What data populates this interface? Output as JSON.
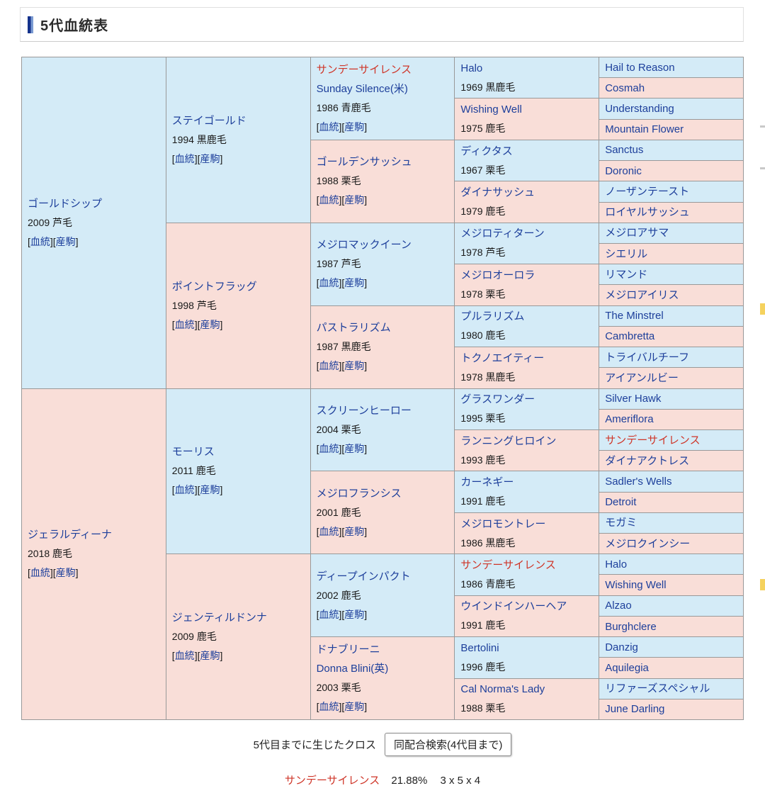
{
  "header": {
    "title": "5代血統表"
  },
  "colors": {
    "male_bg": "#d4ebf7",
    "female_bg": "#f9ded8",
    "link": "#1d3f9b",
    "cross": "#cf3528",
    "border": "#999999",
    "highlight_mark": "#f5d25e"
  },
  "table": {
    "cell_links": [
      "血統",
      "産駒"
    ]
  },
  "pedigree": {
    "generations": [
      {
        "span": 16,
        "has_links": true,
        "cells": [
          {
            "name": "ゴールドシップ",
            "detail": "2009 芦毛",
            "sex": "m"
          },
          {
            "name": "ジェラルディーナ",
            "detail": "2018 鹿毛",
            "sex": "f"
          }
        ]
      },
      {
        "span": 8,
        "has_links": true,
        "cells": [
          {
            "name": "ステイゴールド",
            "detail": "1994 黒鹿毛",
            "sex": "m"
          },
          {
            "name": "ポイントフラッグ",
            "detail": "1998 芦毛",
            "sex": "f"
          },
          {
            "name": "モーリス",
            "detail": "2011 鹿毛",
            "sex": "m"
          },
          {
            "name": "ジェンティルドンナ",
            "detail": "2009 鹿毛",
            "sex": "f"
          }
        ]
      },
      {
        "span": 4,
        "has_links": true,
        "cells": [
          {
            "name": "サンデーサイレンス",
            "name2": "Sunday Silence(米)",
            "detail": "1986 青鹿毛",
            "sex": "m",
            "cross": true
          },
          {
            "name": "ゴールデンサッシュ",
            "detail": "1988 栗毛",
            "sex": "f"
          },
          {
            "name": "メジロマックイーン",
            "detail": "1987 芦毛",
            "sex": "m"
          },
          {
            "name": "パストラリズム",
            "detail": "1987 黒鹿毛",
            "sex": "f"
          },
          {
            "name": "スクリーンヒーロー",
            "detail": "2004 栗毛",
            "sex": "m"
          },
          {
            "name": "メジロフランシス",
            "detail": "2001 鹿毛",
            "sex": "f"
          },
          {
            "name": "ディープインパクト",
            "detail": "2002 鹿毛",
            "sex": "m"
          },
          {
            "name": "ドナブリーニ",
            "name2": "Donna Blini(英)",
            "detail": "2003 栗毛",
            "sex": "f"
          }
        ]
      },
      {
        "span": 2,
        "has_links": false,
        "cells": [
          {
            "name": "Halo",
            "detail": "1969 黒鹿毛",
            "sex": "m"
          },
          {
            "name": "Wishing Well",
            "detail": "1975 鹿毛",
            "sex": "f"
          },
          {
            "name": "ディクタス",
            "detail": "1967 栗毛",
            "sex": "m"
          },
          {
            "name": "ダイナサッシュ",
            "detail": "1979 鹿毛",
            "sex": "f"
          },
          {
            "name": "メジロティターン",
            "detail": "1978 芦毛",
            "sex": "m"
          },
          {
            "name": "メジロオーロラ",
            "detail": "1978 栗毛",
            "sex": "f"
          },
          {
            "name": "プルラリズム",
            "detail": "1980 鹿毛",
            "sex": "m"
          },
          {
            "name": "トクノエイティー",
            "detail": "1978 黒鹿毛",
            "sex": "f"
          },
          {
            "name": "グラスワンダー",
            "detail": "1995 栗毛",
            "sex": "m"
          },
          {
            "name": "ランニングヒロイン",
            "detail": "1993 鹿毛",
            "sex": "f"
          },
          {
            "name": "カーネギー",
            "detail": "1991 鹿毛",
            "sex": "m"
          },
          {
            "name": "メジロモントレー",
            "detail": "1986 黒鹿毛",
            "sex": "f"
          },
          {
            "name": "サンデーサイレンス",
            "detail": "1986 青鹿毛",
            "sex": "m",
            "cross": true
          },
          {
            "name": "ウインドインハーヘア",
            "detail": "1991 鹿毛",
            "sex": "f"
          },
          {
            "name": "Bertolini",
            "detail": "1996 鹿毛",
            "sex": "m"
          },
          {
            "name": "Cal Norma's Lady",
            "detail": "1988 栗毛",
            "sex": "f"
          }
        ]
      },
      {
        "span": 1,
        "has_links": false,
        "cells": [
          {
            "name": "Hail to Reason",
            "sex": "m"
          },
          {
            "name": "Cosmah",
            "sex": "f"
          },
          {
            "name": "Understanding",
            "sex": "m"
          },
          {
            "name": "Mountain Flower",
            "sex": "f"
          },
          {
            "name": "Sanctus",
            "sex": "m"
          },
          {
            "name": "Doronic",
            "sex": "f"
          },
          {
            "name": "ノーザンテースト",
            "sex": "m"
          },
          {
            "name": "ロイヤルサッシュ",
            "sex": "f"
          },
          {
            "name": "メジロアサマ",
            "sex": "m"
          },
          {
            "name": "シエリル",
            "sex": "f"
          },
          {
            "name": "リマンド",
            "sex": "m"
          },
          {
            "name": "メジロアイリス",
            "sex": "f"
          },
          {
            "name": "The Minstrel",
            "sex": "m"
          },
          {
            "name": "Cambretta",
            "sex": "f"
          },
          {
            "name": "トライバルチーフ",
            "sex": "m"
          },
          {
            "name": "アイアンルビー",
            "sex": "f"
          },
          {
            "name": "Silver Hawk",
            "sex": "m"
          },
          {
            "name": "Ameriflora",
            "sex": "f"
          },
          {
            "name": "サンデーサイレンス",
            "sex": "m",
            "cross": true
          },
          {
            "name": "ダイナアクトレス",
            "sex": "f"
          },
          {
            "name": "Sadler's Wells",
            "sex": "m"
          },
          {
            "name": "Detroit",
            "sex": "f"
          },
          {
            "name": "モガミ",
            "sex": "m"
          },
          {
            "name": "メジロクインシー",
            "sex": "f"
          },
          {
            "name": "Halo",
            "sex": "m"
          },
          {
            "name": "Wishing Well",
            "sex": "f"
          },
          {
            "name": "Alzao",
            "sex": "m"
          },
          {
            "name": "Burghclere",
            "sex": "f"
          },
          {
            "name": "Danzig",
            "sex": "m"
          },
          {
            "name": "Aquilegia",
            "sex": "f"
          },
          {
            "name": "リファーズスペシャル",
            "sex": "m"
          },
          {
            "name": "June Darling",
            "sex": "f"
          }
        ]
      }
    ]
  },
  "footer": {
    "cross_label": "5代目までに生じたクロス",
    "search_button": "同配合検索(4代目まで)",
    "cross": {
      "name": "サンデーサイレンス",
      "value": "21.88%",
      "pattern": "3 x 5 x 4"
    }
  }
}
